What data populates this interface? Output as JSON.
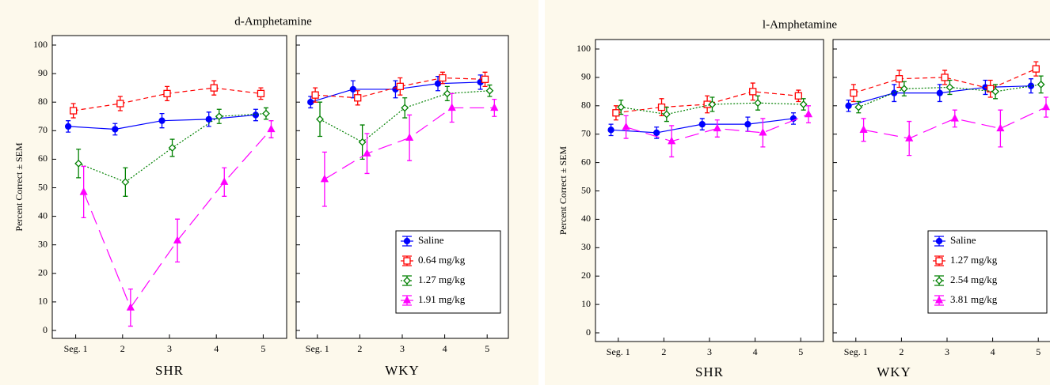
{
  "chart_data": [
    {
      "type": "line",
      "title": "d-Amphetamine",
      "ylabel": "Percent Correct ± SEM",
      "categories": [
        "Seg. 1",
        "2",
        "3",
        "4",
        "5"
      ],
      "ylim": [
        0,
        100
      ],
      "yticks": [
        0,
        10,
        20,
        30,
        40,
        50,
        60,
        70,
        80,
        90,
        100
      ],
      "legend": [
        {
          "name": "Saline",
          "color": "#0000ff",
          "marker": "circle",
          "dash": "solid"
        },
        {
          "name": "0.64 mg/kg",
          "color": "#ff0000",
          "marker": "square",
          "dash": "dashed"
        },
        {
          "name": "1.27 mg/kg",
          "color": "#008000",
          "marker": "diamond",
          "dash": "dotted"
        },
        {
          "name": "1.91 mg/kg",
          "color": "#ff00ff",
          "marker": "star",
          "dash": "longdash"
        }
      ],
      "panels": [
        {
          "xlabel": "SHR",
          "series": [
            {
              "values": [
                71.5,
                70.5,
                73.5,
                74,
                75.5
              ],
              "errors": [
                2,
                2,
                2.5,
                2.5,
                2
              ]
            },
            {
              "values": [
                77,
                79.5,
                83,
                85,
                83
              ],
              "errors": [
                2.5,
                2.5,
                2.5,
                2.5,
                2
              ]
            },
            {
              "values": [
                58.5,
                52,
                64,
                75,
                76
              ],
              "errors": [
                5,
                5,
                3,
                2.5,
                2
              ]
            },
            {
              "values": [
                48.5,
                8,
                31.5,
                52,
                70.5
              ],
              "errors": [
                9,
                6.5,
                7.5,
                5,
                3
              ]
            }
          ]
        },
        {
          "xlabel": "WKY",
          "series": [
            {
              "values": [
                80,
                84.5,
                84.5,
                86.5,
                87
              ],
              "errors": [
                2,
                3,
                3,
                2.5,
                2.5
              ]
            },
            {
              "values": [
                82.5,
                81.5,
                85.5,
                88.5,
                88
              ],
              "errors": [
                2.5,
                2.5,
                3,
                2,
                2.5
              ]
            },
            {
              "values": [
                74,
                66,
                78,
                83,
                84
              ],
              "errors": [
                6,
                6,
                3.5,
                2.5,
                2
              ]
            },
            {
              "values": [
                53,
                62,
                67.5,
                78,
                78
              ],
              "errors": [
                9.5,
                7,
                8,
                5,
                3
              ]
            }
          ]
        }
      ]
    },
    {
      "type": "line",
      "title": "l-Amphetamine",
      "ylabel": "Percent Correct ± SEM",
      "categories": [
        "Seg. 1",
        "2",
        "3",
        "4",
        "5"
      ],
      "ylim": [
        0,
        100
      ],
      "yticks": [
        0,
        10,
        20,
        30,
        40,
        50,
        60,
        70,
        80,
        90,
        100
      ],
      "legend": [
        {
          "name": "Saline",
          "color": "#0000ff",
          "marker": "circle",
          "dash": "solid"
        },
        {
          "name": "1.27 mg/kg",
          "color": "#ff0000",
          "marker": "square",
          "dash": "dashed"
        },
        {
          "name": "2.54 mg/kg",
          "color": "#008000",
          "marker": "diamond",
          "dash": "dotted"
        },
        {
          "name": "3.81 mg/kg",
          "color": "#ff00ff",
          "marker": "star",
          "dash": "longdash"
        }
      ],
      "panels": [
        {
          "xlabel": "SHR",
          "series": [
            {
              "values": [
                71.5,
                70.5,
                73.5,
                73.5,
                75.5
              ],
              "errors": [
                2,
                2,
                2,
                2.5,
                2
              ]
            },
            {
              "values": [
                77.5,
                79.5,
                80.5,
                85,
                83.5
              ],
              "errors": [
                2.5,
                3,
                3,
                3,
                2
              ]
            },
            {
              "values": [
                79.5,
                77,
                80.5,
                81,
                80.5
              ],
              "errors": [
                2.5,
                2.5,
                2.5,
                2.5,
                2
              ]
            },
            {
              "values": [
                72.5,
                67.5,
                72,
                70.5,
                77
              ],
              "errors": [
                4,
                5.5,
                3,
                5,
                3
              ]
            }
          ]
        },
        {
          "xlabel": "WKY",
          "series": [
            {
              "values": [
                80,
                84.5,
                84.5,
                86.5,
                87
              ],
              "errors": [
                2,
                3,
                3,
                2.5,
                2.5
              ]
            },
            {
              "values": [
                84.5,
                89.5,
                90,
                86,
                93
              ],
              "errors": [
                3,
                3,
                2.5,
                3,
                2.5
              ]
            },
            {
              "values": [
                79.5,
                86,
                86.5,
                85,
                87.5
              ],
              "errors": [
                2,
                2.5,
                2.5,
                2.5,
                3
              ]
            },
            {
              "values": [
                71.5,
                68.5,
                75.5,
                72,
                79.5
              ],
              "errors": [
                4,
                6,
                3,
                6.5,
                3.5
              ]
            }
          ]
        }
      ]
    }
  ]
}
